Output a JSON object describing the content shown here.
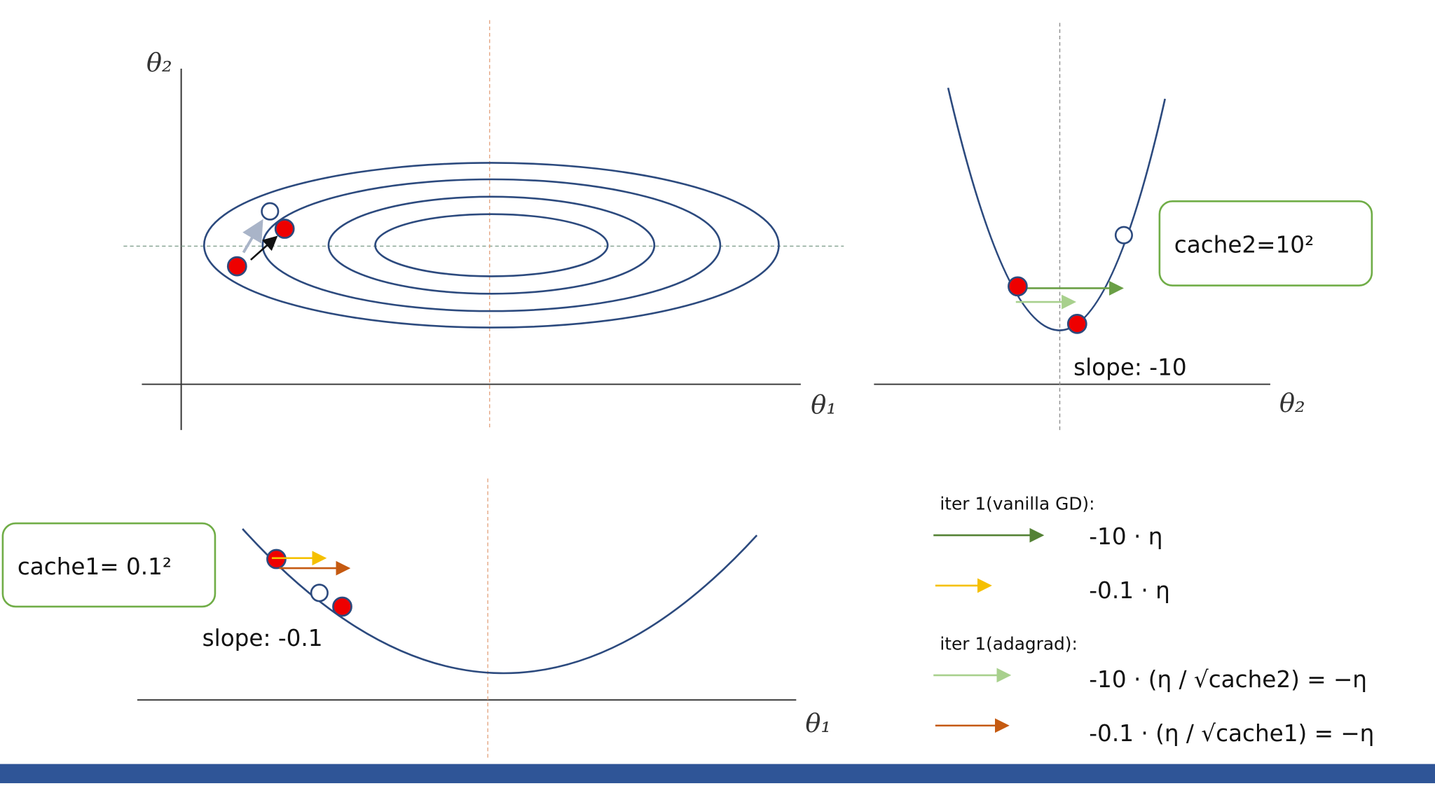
{
  "panels": {
    "contour": {
      "x_label": "θ₁",
      "y_label": "θ₂"
    },
    "theta2_curve": {
      "x_label": "θ₂",
      "cache_label": "cache2=10²",
      "slope_label": "slope: -10"
    },
    "theta1_curve": {
      "x_label": "θ₁",
      "cache_label": "cache1= 0.1²",
      "slope_label": "slope: -0.1"
    }
  },
  "legend": {
    "vanilla_title": "iter 1(vanilla GD):",
    "vanilla_items": [
      "-10 · η",
      "-0.1 · η"
    ],
    "adagrad_title": "iter 1(adagrad):",
    "adagrad_items": [
      "-10 · (η / √cache2) = −η",
      "-0.1 · (η / √cache1) = −η"
    ]
  }
}
